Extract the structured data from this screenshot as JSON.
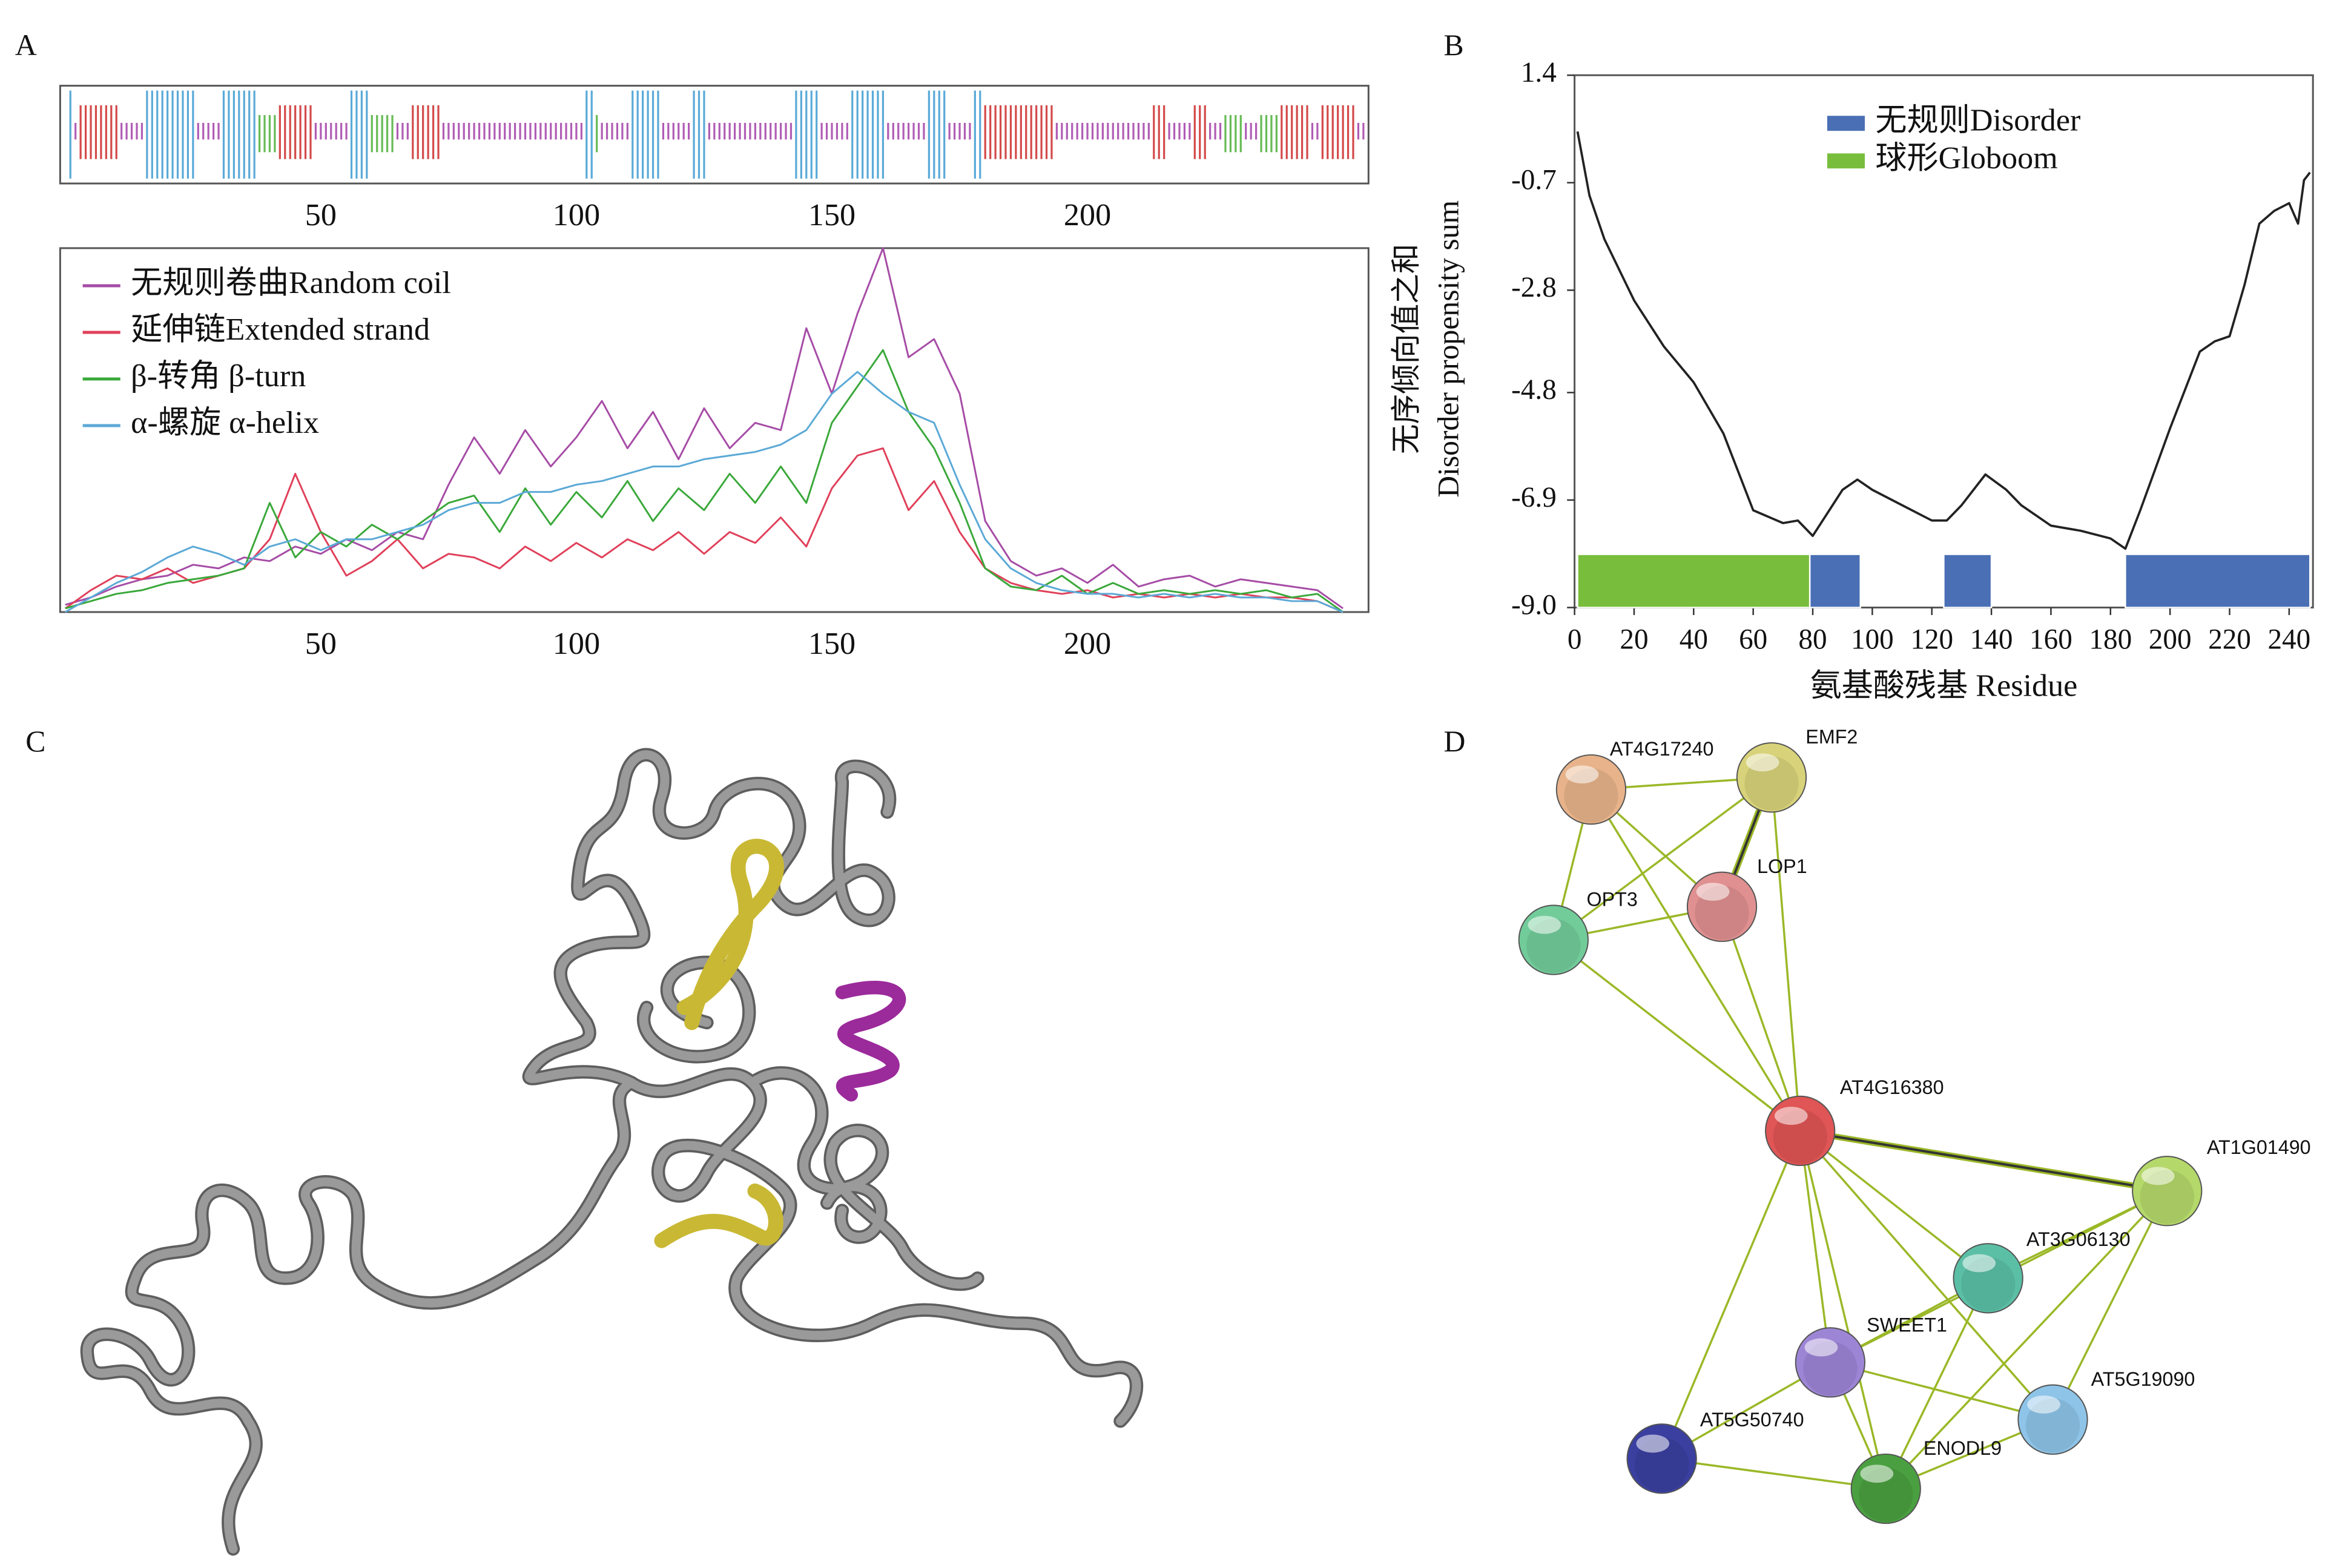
{
  "panel_labels": [
    "A",
    "B",
    "C",
    "D"
  ],
  "chart_data": [
    {
      "type": "strip",
      "xlim": [
        -1,
        255
      ],
      "xticks": [
        50,
        100,
        150,
        200
      ],
      "segments": [
        {
          "start": 1,
          "end": 1,
          "color": "#5aaad8"
        },
        {
          "start": 2,
          "end": 2,
          "color": "#b05db5"
        },
        {
          "start": 3,
          "end": 10,
          "color": "#d44a4a"
        },
        {
          "start": 11,
          "end": 15,
          "color": "#b05db5"
        },
        {
          "start": 16,
          "end": 25,
          "color": "#5aaad8"
        },
        {
          "start": 26,
          "end": 30,
          "color": "#b05db5"
        },
        {
          "start": 31,
          "end": 37,
          "color": "#5aaad8"
        },
        {
          "start": 38,
          "end": 41,
          "color": "#66bb55"
        },
        {
          "start": 42,
          "end": 48,
          "color": "#d44a4a"
        },
        {
          "start": 49,
          "end": 55,
          "color": "#b05db5"
        },
        {
          "start": 56,
          "end": 59,
          "color": "#5aaad8"
        },
        {
          "start": 60,
          "end": 64,
          "color": "#66bb55"
        },
        {
          "start": 65,
          "end": 67,
          "color": "#b05db5"
        },
        {
          "start": 68,
          "end": 73,
          "color": "#d44a4a"
        },
        {
          "start": 74,
          "end": 101,
          "color": "#b05db5"
        },
        {
          "start": 102,
          "end": 103,
          "color": "#5aaad8"
        },
        {
          "start": 104,
          "end": 104,
          "color": "#66bb55"
        },
        {
          "start": 105,
          "end": 110,
          "color": "#b05db5"
        },
        {
          "start": 111,
          "end": 116,
          "color": "#5aaad8"
        },
        {
          "start": 117,
          "end": 122,
          "color": "#b05db5"
        },
        {
          "start": 123,
          "end": 125,
          "color": "#5aaad8"
        },
        {
          "start": 126,
          "end": 142,
          "color": "#b05db5"
        },
        {
          "start": 143,
          "end": 147,
          "color": "#5aaad8"
        },
        {
          "start": 148,
          "end": 153,
          "color": "#b05db5"
        },
        {
          "start": 154,
          "end": 160,
          "color": "#5aaad8"
        },
        {
          "start": 161,
          "end": 168,
          "color": "#b05db5"
        },
        {
          "start": 169,
          "end": 172,
          "color": "#5aaad8"
        },
        {
          "start": 173,
          "end": 177,
          "color": "#b05db5"
        },
        {
          "start": 178,
          "end": 179,
          "color": "#5aaad8"
        },
        {
          "start": 180,
          "end": 193,
          "color": "#d44a4a"
        },
        {
          "start": 194,
          "end": 212,
          "color": "#b05db5"
        },
        {
          "start": 213,
          "end": 215,
          "color": "#d44a4a"
        },
        {
          "start": 216,
          "end": 220,
          "color": "#b05db5"
        },
        {
          "start": 221,
          "end": 223,
          "color": "#d44a4a"
        },
        {
          "start": 224,
          "end": 226,
          "color": "#b05db5"
        },
        {
          "start": 227,
          "end": 230,
          "color": "#66bb55"
        },
        {
          "start": 231,
          "end": 233,
          "color": "#b05db5"
        },
        {
          "start": 234,
          "end": 237,
          "color": "#66bb55"
        },
        {
          "start": 238,
          "end": 243,
          "color": "#d44a4a"
        },
        {
          "start": 244,
          "end": 245,
          "color": "#b05db5"
        },
        {
          "start": 246,
          "end": 252,
          "color": "#d44a4a"
        },
        {
          "start": 253,
          "end": 254,
          "color": "#b05db5"
        }
      ]
    },
    {
      "type": "line",
      "xlim": [
        -1,
        255
      ],
      "ylim": [
        0,
        1
      ],
      "xticks": [
        50,
        100,
        150,
        200
      ],
      "legend": "upper left",
      "x": [
        0,
        5,
        10,
        15,
        20,
        25,
        30,
        35,
        40,
        45,
        50,
        55,
        60,
        65,
        70,
        75,
        80,
        85,
        90,
        95,
        100,
        105,
        110,
        115,
        120,
        125,
        130,
        135,
        140,
        145,
        150,
        155,
        160,
        165,
        170,
        175,
        180,
        185,
        190,
        195,
        200,
        205,
        210,
        215,
        220,
        225,
        230,
        235,
        240,
        245,
        250
      ],
      "series": [
        {
          "name": "无规则卷曲Random coil",
          "color": "#a64ca6",
          "values": [
            0.02,
            0.04,
            0.07,
            0.09,
            0.1,
            0.13,
            0.12,
            0.15,
            0.14,
            0.18,
            0.16,
            0.2,
            0.17,
            0.22,
            0.2,
            0.35,
            0.48,
            0.38,
            0.5,
            0.4,
            0.48,
            0.58,
            0.45,
            0.55,
            0.42,
            0.56,
            0.45,
            0.52,
            0.5,
            0.78,
            0.6,
            0.82,
            1.0,
            0.7,
            0.75,
            0.6,
            0.25,
            0.14,
            0.1,
            0.12,
            0.08,
            0.13,
            0.07,
            0.09,
            0.1,
            0.07,
            0.09,
            0.08,
            0.07,
            0.06,
            0.01
          ]
        },
        {
          "name": "延伸链Extended strand",
          "color": "#e0405a",
          "values": [
            0.01,
            0.06,
            0.1,
            0.09,
            0.12,
            0.08,
            0.1,
            0.12,
            0.2,
            0.38,
            0.22,
            0.1,
            0.14,
            0.2,
            0.12,
            0.16,
            0.15,
            0.12,
            0.18,
            0.14,
            0.19,
            0.15,
            0.2,
            0.17,
            0.22,
            0.16,
            0.22,
            0.19,
            0.26,
            0.18,
            0.34,
            0.43,
            0.45,
            0.28,
            0.36,
            0.22,
            0.12,
            0.08,
            0.06,
            0.05,
            0.06,
            0.04,
            0.05,
            0.04,
            0.05,
            0.04,
            0.05,
            0.04,
            0.04,
            0.03,
            0.0
          ]
        },
        {
          "name": "β-转角 β-turn",
          "color": "#3aa83a",
          "values": [
            0.01,
            0.03,
            0.05,
            0.06,
            0.08,
            0.09,
            0.1,
            0.12,
            0.3,
            0.15,
            0.22,
            0.18,
            0.24,
            0.2,
            0.25,
            0.3,
            0.32,
            0.22,
            0.34,
            0.24,
            0.33,
            0.26,
            0.36,
            0.25,
            0.34,
            0.28,
            0.38,
            0.3,
            0.4,
            0.3,
            0.52,
            0.62,
            0.72,
            0.55,
            0.45,
            0.3,
            0.12,
            0.07,
            0.06,
            0.1,
            0.05,
            0.08,
            0.05,
            0.06,
            0.05,
            0.06,
            0.05,
            0.06,
            0.04,
            0.05,
            0.0
          ]
        },
        {
          "name": "α-螺旋 α-helix",
          "color": "#5ba9d6",
          "values": [
            0.0,
            0.04,
            0.08,
            0.11,
            0.15,
            0.18,
            0.16,
            0.13,
            0.18,
            0.2,
            0.17,
            0.2,
            0.2,
            0.22,
            0.24,
            0.28,
            0.3,
            0.3,
            0.33,
            0.33,
            0.35,
            0.36,
            0.38,
            0.4,
            0.4,
            0.42,
            0.43,
            0.44,
            0.46,
            0.5,
            0.6,
            0.66,
            0.6,
            0.55,
            0.52,
            0.35,
            0.2,
            0.12,
            0.08,
            0.06,
            0.05,
            0.05,
            0.04,
            0.05,
            0.04,
            0.05,
            0.04,
            0.04,
            0.03,
            0.03,
            0.0
          ]
        }
      ]
    },
    {
      "type": "line",
      "xlim": [
        0,
        248
      ],
      "ylim": [
        -9.0,
        1.4
      ],
      "xticks": [
        0,
        20,
        40,
        60,
        80,
        100,
        120,
        140,
        160,
        180,
        200,
        220,
        240
      ],
      "yticks": [
        1.4,
        -0.7,
        -2.8,
        -4.8,
        -6.9,
        {
          "value": -9.0,
          "label": "-9.0"
        }
      ],
      "xlabel": "氨基酸残基 Residue",
      "ylabel": [
        "无序倾向值之和",
        "Disorder propensity sum"
      ],
      "legend": "upper center",
      "color": "#222222",
      "x": [
        1,
        5,
        10,
        15,
        20,
        30,
        40,
        50,
        60,
        70,
        75,
        80,
        90,
        95,
        100,
        110,
        120,
        125,
        130,
        138,
        145,
        150,
        160,
        170,
        180,
        185,
        190,
        200,
        210,
        215,
        220,
        225,
        230,
        235,
        240,
        243,
        245,
        247
      ],
      "values": [
        0.3,
        -0.95,
        -1.8,
        -2.4,
        -3.0,
        -3.9,
        -4.6,
        -5.6,
        -7.1,
        -7.35,
        -7.3,
        -7.6,
        -6.7,
        -6.5,
        -6.7,
        -7.0,
        -7.3,
        -7.3,
        -7.0,
        -6.4,
        -6.7,
        -7.0,
        -7.4,
        -7.5,
        -7.65,
        -7.85,
        -7.1,
        -5.5,
        -4.0,
        -3.8,
        -3.7,
        -2.7,
        -1.5,
        -1.25,
        -1.1,
        -1.5,
        -0.65,
        -0.5
      ],
      "regions": [
        {
          "name": "无规则Disorder",
          "color": "#4a6fb5",
          "spans": [
            [
              79,
              96
            ],
            [
              124,
              140
            ],
            [
              185,
              247
            ]
          ]
        },
        {
          "name": "球形Globoom",
          "color": "#78be3c",
          "spans": [
            [
              1,
              79
            ]
          ]
        }
      ]
    }
  ],
  "network": {
    "nodes": [
      {
        "label": "AT4G17240",
        "color": "#e8b38a"
      },
      {
        "label": "EMF2",
        "color": "#d8d37a"
      },
      {
        "label": "LOP1",
        "color": "#e09090"
      },
      {
        "label": "OPT3",
        "color": "#72cc9a"
      },
      {
        "label": "AT4G16380",
        "color": "#e05555"
      },
      {
        "label": "AT1G01490",
        "color": "#b5d86a"
      },
      {
        "label": "AT3G06130",
        "color": "#5bbfa6"
      },
      {
        "label": "SWEET1",
        "color": "#9d85d6"
      },
      {
        "label": "AT5G19090",
        "color": "#8ec4e8"
      },
      {
        "label": "AT5G50740",
        "color": "#3a3fa0"
      },
      {
        "label": "ENODL9",
        "color": "#4aa040"
      }
    ]
  }
}
